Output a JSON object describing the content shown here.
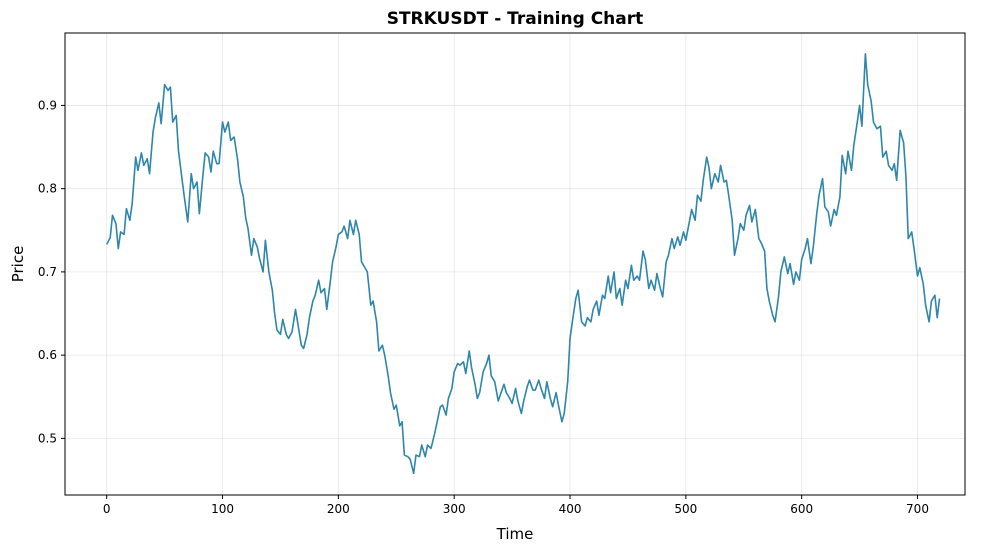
{
  "chart_data": {
    "type": "line",
    "title": "STRKUSDT - Training Chart",
    "xlabel": "Time",
    "ylabel": "Price",
    "xlim": [
      -36,
      741
    ],
    "ylim": [
      0.432,
      0.987
    ],
    "x_ticks": [
      0,
      100,
      200,
      300,
      400,
      500,
      600,
      700
    ],
    "y_ticks": [
      0.5,
      0.6,
      0.7,
      0.8,
      0.9
    ],
    "grid": true,
    "series": [
      {
        "color": "#2e86ab",
        "points": [
          [
            0,
            0.733
          ],
          [
            3,
            0.741
          ],
          [
            5,
            0.768
          ],
          [
            8,
            0.758
          ],
          [
            10,
            0.728
          ],
          [
            12,
            0.748
          ],
          [
            15,
            0.745
          ],
          [
            17,
            0.776
          ],
          [
            20,
            0.762
          ],
          [
            22,
            0.782
          ],
          [
            25,
            0.838
          ],
          [
            27,
            0.822
          ],
          [
            30,
            0.843
          ],
          [
            32,
            0.828
          ],
          [
            35,
            0.836
          ],
          [
            37,
            0.818
          ],
          [
            40,
            0.868
          ],
          [
            42,
            0.885
          ],
          [
            45,
            0.903
          ],
          [
            47,
            0.878
          ],
          [
            50,
            0.925
          ],
          [
            53,
            0.918
          ],
          [
            55,
            0.922
          ],
          [
            57,
            0.88
          ],
          [
            60,
            0.888
          ],
          [
            62,
            0.845
          ],
          [
            65,
            0.812
          ],
          [
            67,
            0.79
          ],
          [
            70,
            0.76
          ],
          [
            73,
            0.818
          ],
          [
            75,
            0.8
          ],
          [
            78,
            0.808
          ],
          [
            80,
            0.77
          ],
          [
            83,
            0.815
          ],
          [
            85,
            0.843
          ],
          [
            88,
            0.838
          ],
          [
            90,
            0.82
          ],
          [
            92,
            0.845
          ],
          [
            95,
            0.83
          ],
          [
            97,
            0.83
          ],
          [
            100,
            0.88
          ],
          [
            102,
            0.868
          ],
          [
            105,
            0.88
          ],
          [
            107,
            0.858
          ],
          [
            110,
            0.862
          ],
          [
            113,
            0.835
          ],
          [
            115,
            0.808
          ],
          [
            118,
            0.79
          ],
          [
            120,
            0.765
          ],
          [
            122,
            0.752
          ],
          [
            125,
            0.72
          ],
          [
            127,
            0.74
          ],
          [
            130,
            0.73
          ],
          [
            132,
            0.716
          ],
          [
            135,
            0.7
          ],
          [
            137,
            0.738
          ],
          [
            140,
            0.7
          ],
          [
            143,
            0.678
          ],
          [
            145,
            0.65
          ],
          [
            147,
            0.63
          ],
          [
            150,
            0.625
          ],
          [
            152,
            0.643
          ],
          [
            155,
            0.625
          ],
          [
            157,
            0.62
          ],
          [
            160,
            0.628
          ],
          [
            163,
            0.655
          ],
          [
            165,
            0.638
          ],
          [
            168,
            0.612
          ],
          [
            170,
            0.608
          ],
          [
            173,
            0.625
          ],
          [
            175,
            0.645
          ],
          [
            178,
            0.665
          ],
          [
            180,
            0.672
          ],
          [
            183,
            0.69
          ],
          [
            185,
            0.675
          ],
          [
            188,
            0.68
          ],
          [
            190,
            0.655
          ],
          [
            193,
            0.688
          ],
          [
            195,
            0.712
          ],
          [
            198,
            0.73
          ],
          [
            200,
            0.745
          ],
          [
            203,
            0.748
          ],
          [
            205,
            0.755
          ],
          [
            208,
            0.74
          ],
          [
            210,
            0.762
          ],
          [
            213,
            0.745
          ],
          [
            215,
            0.762
          ],
          [
            218,
            0.745
          ],
          [
            220,
            0.712
          ],
          [
            223,
            0.705
          ],
          [
            225,
            0.7
          ],
          [
            228,
            0.66
          ],
          [
            230,
            0.665
          ],
          [
            233,
            0.64
          ],
          [
            235,
            0.605
          ],
          [
            238,
            0.612
          ],
          [
            240,
            0.6
          ],
          [
            243,
            0.575
          ],
          [
            245,
            0.555
          ],
          [
            248,
            0.535
          ],
          [
            250,
            0.54
          ],
          [
            253,
            0.515
          ],
          [
            255,
            0.52
          ],
          [
            257,
            0.48
          ],
          [
            260,
            0.478
          ],
          [
            262,
            0.475
          ],
          [
            265,
            0.458
          ],
          [
            267,
            0.48
          ],
          [
            270,
            0.478
          ],
          [
            272,
            0.492
          ],
          [
            275,
            0.478
          ],
          [
            277,
            0.492
          ],
          [
            280,
            0.488
          ],
          [
            283,
            0.505
          ],
          [
            285,
            0.518
          ],
          [
            288,
            0.538
          ],
          [
            290,
            0.54
          ],
          [
            293,
            0.528
          ],
          [
            295,
            0.548
          ],
          [
            298,
            0.56
          ],
          [
            300,
            0.58
          ],
          [
            303,
            0.59
          ],
          [
            305,
            0.588
          ],
          [
            308,
            0.592
          ],
          [
            310,
            0.578
          ],
          [
            313,
            0.605
          ],
          [
            315,
            0.585
          ],
          [
            318,
            0.565
          ],
          [
            320,
            0.548
          ],
          [
            322,
            0.555
          ],
          [
            325,
            0.58
          ],
          [
            328,
            0.59
          ],
          [
            330,
            0.6
          ],
          [
            332,
            0.575
          ],
          [
            335,
            0.568
          ],
          [
            338,
            0.545
          ],
          [
            340,
            0.553
          ],
          [
            343,
            0.565
          ],
          [
            345,
            0.555
          ],
          [
            348,
            0.548
          ],
          [
            350,
            0.542
          ],
          [
            353,
            0.56
          ],
          [
            355,
            0.545
          ],
          [
            358,
            0.53
          ],
          [
            360,
            0.545
          ],
          [
            363,
            0.562
          ],
          [
            365,
            0.57
          ],
          [
            368,
            0.558
          ],
          [
            370,
            0.558
          ],
          [
            373,
            0.57
          ],
          [
            375,
            0.56
          ],
          [
            378,
            0.548
          ],
          [
            380,
            0.568
          ],
          [
            383,
            0.548
          ],
          [
            385,
            0.538
          ],
          [
            388,
            0.555
          ],
          [
            390,
            0.54
          ],
          [
            393,
            0.52
          ],
          [
            395,
            0.53
          ],
          [
            398,
            0.568
          ],
          [
            400,
            0.62
          ],
          [
            402,
            0.64
          ],
          [
            405,
            0.668
          ],
          [
            407,
            0.678
          ],
          [
            410,
            0.64
          ],
          [
            413,
            0.635
          ],
          [
            415,
            0.645
          ],
          [
            418,
            0.64
          ],
          [
            420,
            0.655
          ],
          [
            423,
            0.665
          ],
          [
            425,
            0.648
          ],
          [
            428,
            0.672
          ],
          [
            430,
            0.668
          ],
          [
            433,
            0.695
          ],
          [
            435,
            0.675
          ],
          [
            438,
            0.7
          ],
          [
            440,
            0.668
          ],
          [
            443,
            0.68
          ],
          [
            445,
            0.66
          ],
          [
            448,
            0.69
          ],
          [
            450,
            0.68
          ],
          [
            453,
            0.708
          ],
          [
            455,
            0.69
          ],
          [
            458,
            0.695
          ],
          [
            460,
            0.69
          ],
          [
            463,
            0.725
          ],
          [
            465,
            0.715
          ],
          [
            468,
            0.68
          ],
          [
            470,
            0.69
          ],
          [
            473,
            0.678
          ],
          [
            475,
            0.698
          ],
          [
            478,
            0.68
          ],
          [
            480,
            0.67
          ],
          [
            483,
            0.712
          ],
          [
            485,
            0.72
          ],
          [
            488,
            0.74
          ],
          [
            490,
            0.728
          ],
          [
            493,
            0.742
          ],
          [
            495,
            0.732
          ],
          [
            498,
            0.748
          ],
          [
            500,
            0.738
          ],
          [
            503,
            0.76
          ],
          [
            505,
            0.775
          ],
          [
            508,
            0.762
          ],
          [
            510,
            0.792
          ],
          [
            513,
            0.785
          ],
          [
            515,
            0.81
          ],
          [
            518,
            0.838
          ],
          [
            520,
            0.825
          ],
          [
            522,
            0.8
          ],
          [
            525,
            0.818
          ],
          [
            528,
            0.808
          ],
          [
            530,
            0.828
          ],
          [
            533,
            0.808
          ],
          [
            535,
            0.81
          ],
          [
            537,
            0.792
          ],
          [
            540,
            0.762
          ],
          [
            542,
            0.72
          ],
          [
            545,
            0.74
          ],
          [
            547,
            0.758
          ],
          [
            550,
            0.75
          ],
          [
            552,
            0.768
          ],
          [
            555,
            0.78
          ],
          [
            557,
            0.76
          ],
          [
            560,
            0.775
          ],
          [
            563,
            0.74
          ],
          [
            565,
            0.735
          ],
          [
            568,
            0.725
          ],
          [
            570,
            0.68
          ],
          [
            572,
            0.665
          ],
          [
            575,
            0.648
          ],
          [
            577,
            0.64
          ],
          [
            580,
            0.67
          ],
          [
            582,
            0.7
          ],
          [
            585,
            0.718
          ],
          [
            588,
            0.698
          ],
          [
            590,
            0.71
          ],
          [
            593,
            0.685
          ],
          [
            595,
            0.7
          ],
          [
            598,
            0.69
          ],
          [
            600,
            0.715
          ],
          [
            603,
            0.728
          ],
          [
            605,
            0.74
          ],
          [
            608,
            0.71
          ],
          [
            610,
            0.73
          ],
          [
            613,
            0.77
          ],
          [
            615,
            0.792
          ],
          [
            618,
            0.812
          ],
          [
            620,
            0.778
          ],
          [
            623,
            0.772
          ],
          [
            625,
            0.755
          ],
          [
            628,
            0.775
          ],
          [
            630,
            0.768
          ],
          [
            633,
            0.79
          ],
          [
            635,
            0.84
          ],
          [
            638,
            0.818
          ],
          [
            640,
            0.845
          ],
          [
            643,
            0.822
          ],
          [
            645,
            0.852
          ],
          [
            648,
            0.88
          ],
          [
            650,
            0.9
          ],
          [
            652,
            0.875
          ],
          [
            655,
            0.962
          ],
          [
            657,
            0.925
          ],
          [
            660,
            0.905
          ],
          [
            662,
            0.88
          ],
          [
            665,
            0.872
          ],
          [
            668,
            0.875
          ],
          [
            670,
            0.838
          ],
          [
            673,
            0.845
          ],
          [
            675,
            0.828
          ],
          [
            678,
            0.822
          ],
          [
            680,
            0.83
          ],
          [
            682,
            0.81
          ],
          [
            685,
            0.87
          ],
          [
            688,
            0.855
          ],
          [
            690,
            0.815
          ],
          [
            692,
            0.74
          ],
          [
            695,
            0.748
          ],
          [
            697,
            0.728
          ],
          [
            700,
            0.695
          ],
          [
            702,
            0.705
          ],
          [
            705,
            0.685
          ],
          [
            707,
            0.66
          ],
          [
            710,
            0.64
          ],
          [
            712,
            0.665
          ],
          [
            715,
            0.672
          ],
          [
            717,
            0.645
          ],
          [
            719,
            0.668
          ]
        ]
      }
    ]
  }
}
